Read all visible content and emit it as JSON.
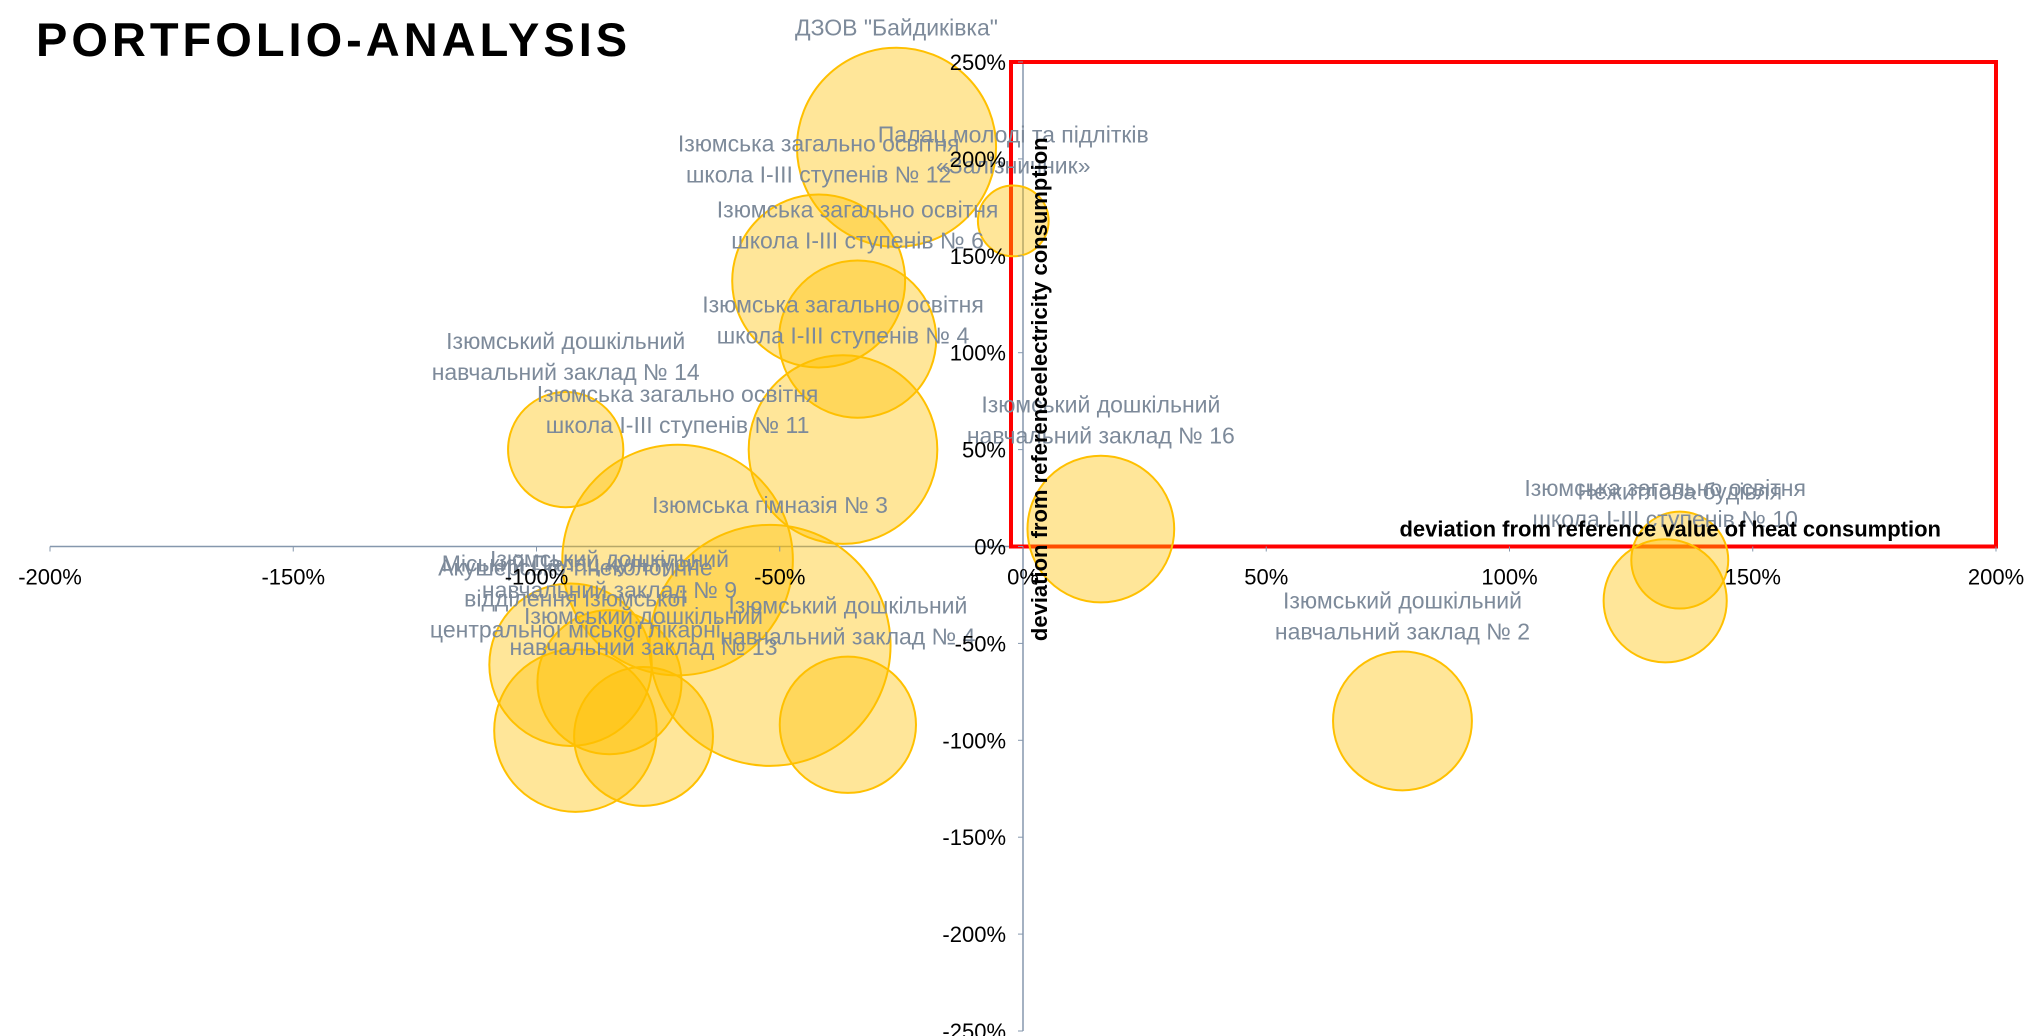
{
  "chart_data": {
    "type": "bubble",
    "title": "PORTFOLIO-ANALYSIS",
    "x_label": "deviation  from reference value of heat consumption",
    "y_label": "deviation from referenceelectricity consumption",
    "xlim": [
      -200,
      200
    ],
    "xticks": [
      {
        "value": -200,
        "label": "-200%"
      },
      {
        "value": -150,
        "label": "-150%"
      },
      {
        "value": -100,
        "label": "-100%"
      },
      {
        "value": -50,
        "label": "-50%"
      },
      {
        "value": 0,
        "label": "0%"
      },
      {
        "value": 50,
        "label": "50%"
      },
      {
        "value": 100,
        "label": "100%"
      },
      {
        "value": 150,
        "label": "150%"
      },
      {
        "value": 200,
        "label": "200%"
      }
    ],
    "ylim": [
      -250,
      250
    ],
    "yticks": [
      {
        "value": -250,
        "label": "-250%"
      },
      {
        "value": -200,
        "label": "-200%"
      },
      {
        "value": -150,
        "label": "-150%"
      },
      {
        "value": -100,
        "label": "-100%"
      },
      {
        "value": -50,
        "label": "-50%"
      },
      {
        "value": 0,
        "label": "0%"
      },
      {
        "value": 50,
        "label": "50%"
      },
      {
        "value": 100,
        "label": "100%"
      },
      {
        "value": 150,
        "label": "150%"
      },
      {
        "value": 200,
        "label": "200%"
      },
      {
        "value": 250,
        "label": "250%"
      }
    ],
    "color": "#ffc000",
    "highlight_color": "#ff0000",
    "series": [
      {
        "x": [
          -26,
          -2,
          -42,
          -34,
          -37,
          -94,
          -71,
          16,
          135,
          132,
          78,
          -93,
          -92,
          -52,
          -78,
          -36,
          -85
        ],
        "values": [
          206,
          168,
          137,
          107,
          50,
          50,
          -7,
          9,
          -7,
          -28,
          -90,
          -61,
          -95,
          -51,
          -98,
          -92,
          -70
        ],
        "sizes": [
          76,
          27,
          66,
          60,
          72,
          44,
          88,
          56,
          37,
          47,
          53,
          62,
          62,
          92,
          53,
          52,
          55
        ],
        "labels": [
          [
            "ДЗОВ \"Байдиківка\""
          ],
          [
            "Палац молоді та підлітків",
            "«Залізничник»"
          ],
          [
            "Ізюмська загально освітня",
            "школа І-ІІІ ступенів № 12"
          ],
          [
            "Ізюмська загально освітня",
            "школа І-ІІІ ступенів № 6"
          ],
          [
            "Ізюмська загально освітня",
            "школа І-ІІІ ступенів № 4"
          ],
          [
            "Ізюмський дошкільний",
            "навчальний заклад № 14"
          ],
          [
            "Ізюмська загально освітня",
            "школа І-ІІІ ступенів № 11"
          ],
          [
            "Ізюмський дошкільний",
            "навчальний заклад № 16"
          ],
          [
            "Нежитлова будівля"
          ],
          [
            "Ізюмська загально освітня",
            "школа І-ІІІ ступенів № 10"
          ],
          [
            "Ізюмський дошкільний",
            "навчальний заклад  № 2"
          ],
          [
            "Міський Палац культури"
          ],
          [
            "Акушерсько-гінекологічне",
            "відділення Ізюмської",
            "центральної міської лікарні"
          ],
          [
            "Ізюмська гімназія № 3"
          ],
          [
            "Ізюмський дошкільний",
            "навчальний заклад № 13"
          ],
          [
            "Ізюмський дошкільний",
            "навчальний заклад № 4"
          ],
          [
            "Ізюмський дошкільний",
            "навчальний заклад № 9"
          ]
        ]
      }
    ]
  }
}
